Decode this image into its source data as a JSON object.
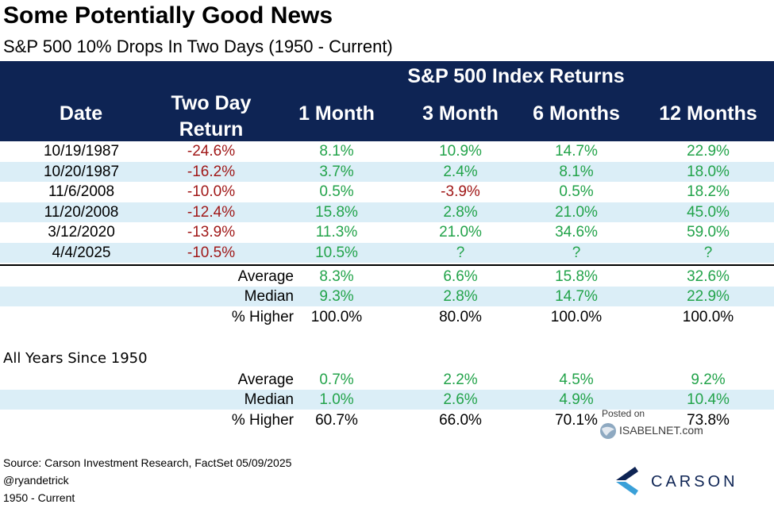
{
  "title": "Some Potentially Good News",
  "subtitle": "S&P 500 10% Drops In Two Days (1950 - Current)",
  "header": {
    "group_label": "S&P 500 Index Returns",
    "date_label": "Date",
    "two_day_label_line1": "Two Day",
    "two_day_label_line2": "Return",
    "col_1m": "1 Month",
    "col_3m": "3 Month",
    "col_6m": "6 Months",
    "col_12m": "12 Months"
  },
  "chart_data": {
    "type": "table",
    "title": "Some Potentially Good News",
    "subtitle": "S&P 500 10% Drops In Two Days (1950 - Current)",
    "columns": [
      "Date",
      "Two Day Return",
      "1 Month",
      "3 Month",
      "6 Months",
      "12 Months"
    ],
    "rows": [
      {
        "date": "10/19/1987",
        "two_day": "-24.6%",
        "m1": "8.1%",
        "m3": "10.9%",
        "m6": "14.7%",
        "m12": "22.9%"
      },
      {
        "date": "10/20/1987",
        "two_day": "-16.2%",
        "m1": "3.7%",
        "m3": "2.4%",
        "m6": "8.1%",
        "m12": "18.0%"
      },
      {
        "date": "11/6/2008",
        "two_day": "-10.0%",
        "m1": "0.5%",
        "m3": "-3.9%",
        "m6": "0.5%",
        "m12": "18.2%"
      },
      {
        "date": "11/20/2008",
        "two_day": "-12.4%",
        "m1": "15.8%",
        "m3": "2.8%",
        "m6": "21.0%",
        "m12": "45.0%"
      },
      {
        "date": "3/12/2020",
        "two_day": "-13.9%",
        "m1": "11.3%",
        "m3": "21.0%",
        "m6": "34.6%",
        "m12": "59.0%"
      },
      {
        "date": "4/4/2025",
        "two_day": "-10.5%",
        "m1": "10.5%",
        "m3": "?",
        "m6": "?",
        "m12": "?"
      }
    ],
    "summary": [
      {
        "label": "Average",
        "m1": "8.3%",
        "m3": "6.6%",
        "m6": "15.8%",
        "m12": "32.6%"
      },
      {
        "label": "Median",
        "m1": "9.3%",
        "m3": "2.8%",
        "m6": "14.7%",
        "m12": "22.9%"
      },
      {
        "label": "% Higher",
        "m1": "100.0%",
        "m3": "80.0%",
        "m6": "100.0%",
        "m12": "100.0%"
      }
    ],
    "all_years_label": "All Years Since 1950",
    "all_years": [
      {
        "label": "Average",
        "m1": "0.7%",
        "m3": "2.2%",
        "m6": "4.5%",
        "m12": "9.2%"
      },
      {
        "label": "Median",
        "m1": "1.0%",
        "m3": "2.6%",
        "m6": "4.9%",
        "m12": "10.4%"
      },
      {
        "label": "% Higher",
        "m1": "60.7%",
        "m3": "66.0%",
        "m6": "70.1%",
        "m12": "73.8%"
      }
    ]
  },
  "source": {
    "line1": "Source: Carson Investment Research, FactSet 05/09/2025",
    "line2": "@ryandetrick",
    "line3": "1950 - Current"
  },
  "watermark": {
    "line1": "Posted on",
    "line2": "ISABELNET.com"
  },
  "logo_text": "CARSON",
  "colors": {
    "header_bg": "#0e2454",
    "shade": "#dbeef7",
    "positive": "#22a34a",
    "negative": "#a01818",
    "neutral": "#000000",
    "logo_dark": "#0e2454",
    "logo_light": "#3aa0d8"
  }
}
